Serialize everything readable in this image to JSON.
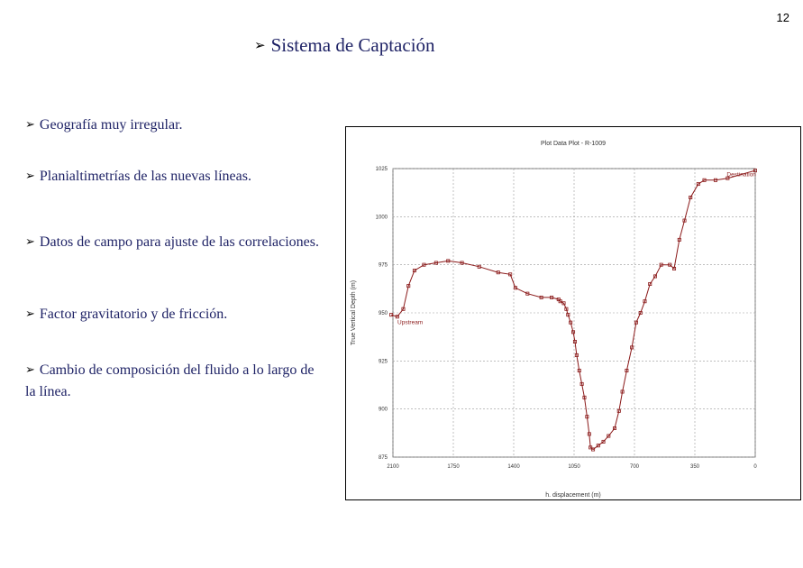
{
  "page_number": "12",
  "title": "Sistema de Captación",
  "bullets": [
    {
      "text": "Geografía muy irregular."
    },
    {
      "text": "Planialtimetrías de las nuevas líneas."
    },
    {
      "text": "Datos de campo para ajuste de las correlaciones."
    },
    {
      "text": "Factor gravitatorio y de fricción."
    },
    {
      "text": "Cambio de composición del fluido a lo largo de la línea."
    }
  ],
  "chart_data": {
    "type": "line",
    "title": "Plot Data Plot - R-1009",
    "xlabel": "h. displacement (m)",
    "ylabel": "True Vertical Depth (m)",
    "x_ticks": [
      "2100",
      "1750",
      "1400",
      "1050",
      "700",
      "350",
      "0"
    ],
    "y_ticks": [
      "1025",
      "1000",
      "975",
      "950",
      "925",
      "900",
      "875"
    ],
    "xlim": [
      2100,
      0
    ],
    "ylim": [
      875,
      1025
    ],
    "x_reversed": true,
    "grid": true,
    "color": "#8b1a1a",
    "annotations": [
      {
        "text": "Destination",
        "x": 80,
        "y": 1022
      },
      {
        "text": "Upstream",
        "x": 2000,
        "y": 945
      }
    ],
    "series": [
      {
        "name": "",
        "points": [
          [
            2110,
            949
          ],
          [
            2075,
            948
          ],
          [
            2040,
            952
          ],
          [
            2010,
            964
          ],
          [
            1975,
            972
          ],
          [
            1920,
            975
          ],
          [
            1850,
            976
          ],
          [
            1780,
            977
          ],
          [
            1700,
            976
          ],
          [
            1600,
            974
          ],
          [
            1490,
            971
          ],
          [
            1420,
            970
          ],
          [
            1390,
            963
          ],
          [
            1320,
            960
          ],
          [
            1240,
            958
          ],
          [
            1180,
            958
          ],
          [
            1140,
            957
          ],
          [
            1130,
            956
          ],
          [
            1110,
            955
          ],
          [
            1095,
            952
          ],
          [
            1085,
            949
          ],
          [
            1070,
            945
          ],
          [
            1055,
            940
          ],
          [
            1045,
            935
          ],
          [
            1035,
            928
          ],
          [
            1020,
            920
          ],
          [
            1005,
            913
          ],
          [
            990,
            906
          ],
          [
            975,
            896
          ],
          [
            962,
            887
          ],
          [
            955,
            880
          ],
          [
            940,
            879
          ],
          [
            910,
            881
          ],
          [
            880,
            883
          ],
          [
            850,
            886
          ],
          [
            815,
            890
          ],
          [
            790,
            899
          ],
          [
            770,
            909
          ],
          [
            745,
            920
          ],
          [
            715,
            932
          ],
          [
            690,
            945
          ],
          [
            665,
            950
          ],
          [
            640,
            956
          ],
          [
            610,
            965
          ],
          [
            580,
            969
          ],
          [
            545,
            975
          ],
          [
            495,
            975
          ],
          [
            470,
            973
          ],
          [
            440,
            988
          ],
          [
            410,
            998
          ],
          [
            375,
            1010
          ],
          [
            330,
            1017
          ],
          [
            295,
            1019
          ],
          [
            230,
            1019
          ],
          [
            160,
            1020
          ],
          [
            0,
            1024
          ]
        ]
      }
    ]
  }
}
